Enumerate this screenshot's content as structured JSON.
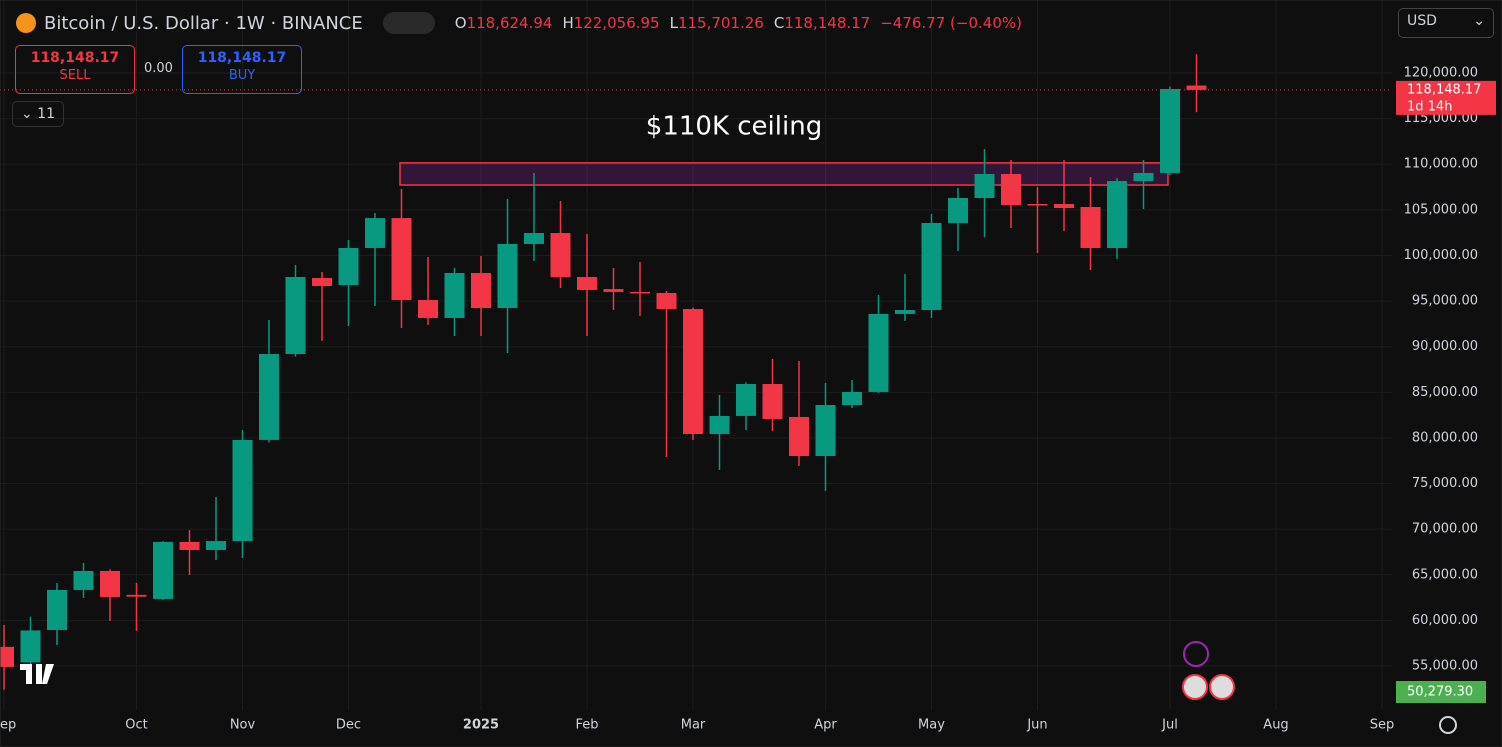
{
  "header": {
    "symbol": "Bitcoin / U.S. Dollar · 1W · BINANCE",
    "ohlc": [
      {
        "key": "O",
        "text": "118,624.94"
      },
      {
        "key": "H",
        "text": "122,056.95"
      },
      {
        "key": "L",
        "text": "115,701.26"
      },
      {
        "key": "C",
        "text": "118,148.17"
      }
    ],
    "change": "−476.77 (−0.40%)",
    "currency": "USD"
  },
  "trade": {
    "sell_price": "118,148.17",
    "sell": "SELL",
    "spread": "0.00",
    "buy_price": "118,148.17",
    "buy": "BUY"
  },
  "indicators_toggle": "11",
  "chart_data": {
    "type": "candlestick",
    "categories": [
      "Sep",
      null,
      null,
      null,
      null,
      "Oct",
      null,
      null,
      null,
      "Nov",
      null,
      null,
      null,
      "Dec",
      null,
      null,
      null,
      null,
      "2025",
      null,
      null,
      null,
      "Feb",
      null,
      null,
      null,
      "Mar",
      null,
      null,
      null,
      null,
      "Apr",
      null,
      null,
      null,
      "May",
      null,
      null,
      null,
      "Jun",
      null,
      null,
      null,
      null,
      "Jul",
      null,
      null,
      null,
      "Aug",
      null,
      null,
      null,
      "Sep"
    ],
    "open": [
      57100,
      55400,
      58950,
      63340,
      65420,
      62800,
      62350,
      68600,
      67720,
      68700,
      79780,
      89200,
      97530,
      96760,
      100820,
      104100,
      95120,
      93150,
      98080,
      94240,
      101260,
      102460,
      97640,
      96320,
      96000,
      95890,
      94130,
      80430,
      82410,
      85910,
      82300,
      78020,
      83610,
      85040,
      93590,
      94020,
      103560,
      106300,
      108930,
      105640,
      105640,
      105310,
      100820,
      108160,
      109040,
      118624.94,
      null,
      null,
      null,
      null,
      null,
      null,
      null
    ],
    "high": [
      59500,
      60400,
      64100,
      66300,
      65600,
      64100,
      68700,
      69900,
      73530,
      80870,
      92930,
      98960,
      98190,
      101700,
      104650,
      107300,
      99830,
      98630,
      99940,
      106190,
      109040,
      105970,
      102350,
      98630,
      99290,
      96110,
      94300,
      84710,
      86100,
      88650,
      88430,
      86020,
      86350,
      95670,
      97970,
      104540,
      107400,
      111670,
      110460,
      107500,
      110460,
      108600,
      108490,
      110460,
      118500,
      122056.95,
      null,
      null,
      null,
      null,
      null,
      null,
      null
    ],
    "low": [
      52400,
      54500,
      57300,
      62460,
      59940,
      58840,
      62240,
      64980,
      66620,
      66840,
      79500,
      88900,
      90630,
      92270,
      94460,
      92050,
      92380,
      91170,
      91170,
      89310,
      99390,
      96430,
      91170,
      94020,
      93370,
      77910,
      79780,
      76490,
      80870,
      80760,
      76930,
      74190,
      83280,
      84900,
      92820,
      93150,
      100490,
      102020,
      103010,
      100270,
      102680,
      98410,
      99610,
      105090,
      108800,
      115701.26,
      null,
      null,
      null,
      null,
      null,
      null,
      null
    ],
    "close": [
      54900,
      58900,
      63340,
      65420,
      62570,
      62600,
      68600,
      67720,
      68700,
      79780,
      89200,
      97640,
      96650,
      100820,
      104100,
      95120,
      93150,
      98080,
      94240,
      101260,
      102460,
      97640,
      96220,
      96000,
      95890,
      94130,
      80430,
      82410,
      85910,
      82080,
      78020,
      83610,
      85040,
      93590,
      94020,
      103560,
      106300,
      108930,
      105530,
      105530,
      105200,
      100820,
      108160,
      109040,
      118250,
      118148.17,
      null,
      null,
      null,
      null,
      null,
      null,
      null
    ],
    "up_color": "#089981",
    "down_color": "#f23645",
    "ylim": [
      50180,
      128000
    ],
    "yticks": [
      {
        "value": 55000,
        "label": "55,000.00"
      },
      {
        "value": 60000,
        "label": "60,000.00"
      },
      {
        "value": 65000,
        "label": "65,000.00"
      },
      {
        "value": 70000,
        "label": "70,000.00"
      },
      {
        "value": 75000,
        "label": "75,000.00"
      },
      {
        "value": 80000,
        "label": "80,000.00"
      },
      {
        "value": 85000,
        "label": "85,000.00"
      },
      {
        "value": 90000,
        "label": "90,000.00"
      },
      {
        "value": 95000,
        "label": "95,000.00"
      },
      {
        "value": 100000,
        "label": "100,000.00"
      },
      {
        "value": 105000,
        "label": "105,000.00"
      },
      {
        "value": 110000,
        "label": "110,000.00"
      },
      {
        "value": 115000,
        "label": "115,000.00"
      },
      {
        "value": 120000,
        "label": "120,000.00"
      }
    ],
    "grid": true,
    "annotation": {
      "text": "$110K ceiling",
      "ylim": [
        107720,
        110150
      ]
    },
    "last_price": {
      "value": 118148.17,
      "label": "118,148.17",
      "countdown": "1d 14h"
    },
    "low_marker": {
      "value": 50279.3,
      "label": "50,279.30"
    }
  }
}
